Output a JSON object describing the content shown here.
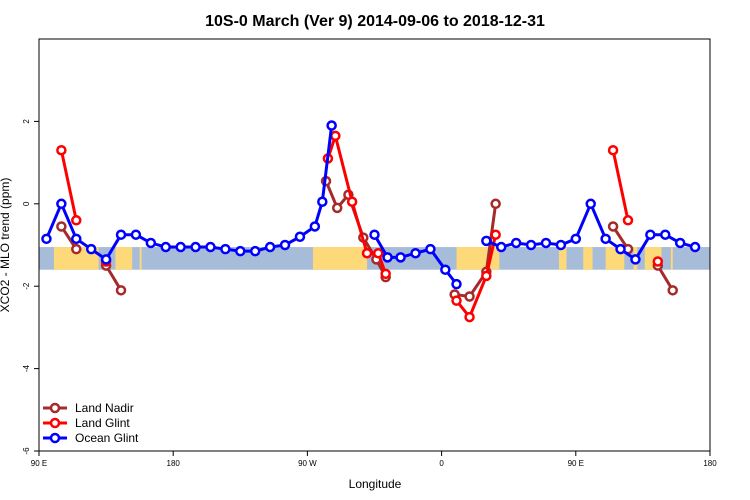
{
  "chart_data": {
    "type": "line",
    "title": "10S-0 March (Ver 9)   2014-09-06 to 2018-12-31",
    "xlabel": "Longitude",
    "ylabel": "XCO2 - MLO trend (ppm)",
    "xlim": [
      -90,
      270
    ],
    "ylim": [
      -6,
      4
    ],
    "xticks": [
      {
        "value": -90,
        "label": "90 E"
      },
      {
        "value": -18,
        "label": "180"
      },
      {
        "value": 54,
        "label": "90 W"
      },
      {
        "value": 126,
        "label": "0"
      },
      {
        "value": 198,
        "label": "90 E"
      },
      {
        "value": 270,
        "label": "180"
      }
    ],
    "yticks": [
      {
        "value": -6,
        "label": "-6"
      },
      {
        "value": -4,
        "label": "-4"
      },
      {
        "value": -2,
        "label": "-2"
      },
      {
        "value": 0,
        "label": "0"
      },
      {
        "value": 2,
        "label": "2"
      }
    ],
    "grid": false,
    "legend_position": "bottom-left",
    "latitude_band": {
      "y_range": [
        -1.6,
        -1.05
      ],
      "ocean_color": "#a7bcd8",
      "land_color": "#fdd97a",
      "land_segments": [
        [
          -82,
          -58
        ],
        [
          -49,
          -40
        ],
        [
          -36,
          -35
        ],
        [
          57,
          86
        ],
        [
          134,
          157
        ],
        [
          189,
          193
        ],
        [
          202,
          207
        ],
        [
          214,
          224
        ],
        [
          229,
          231
        ],
        [
          235,
          244
        ],
        [
          249,
          250
        ]
      ]
    },
    "series": [
      {
        "name": "Land Nadir",
        "color": "#a52a2a",
        "segments": [
          [
            [
              -78,
              -0.55
            ],
            [
              -70,
              -1.1
            ]
          ],
          [
            [
              -54,
              -1.5
            ],
            [
              -46,
              -2.1
            ]
          ],
          [
            [
              64,
              0.55
            ],
            [
              70,
              -0.1
            ],
            [
              76,
              0.22
            ],
            [
              84,
              -0.82
            ],
            [
              91,
              -1.35
            ],
            [
              96,
              -1.78
            ]
          ],
          [
            [
              133,
              -2.2
            ],
            [
              141,
              -2.25
            ],
            [
              150,
              -1.65
            ],
            [
              155,
              0
            ]
          ],
          [
            [
              218,
              -0.55
            ],
            [
              226,
              -1.1
            ]
          ],
          [
            [
              242,
              -1.5
            ],
            [
              250,
              -2.1
            ]
          ]
        ]
      },
      {
        "name": "Land Glint",
        "color": "#ff0000",
        "segments": [
          [
            [
              -78,
              1.3
            ],
            [
              -70,
              -0.4
            ]
          ],
          [
            [
              -54,
              -1.4
            ]
          ],
          [
            [
              65,
              1.1
            ],
            [
              69,
              1.65
            ],
            [
              78,
              0.05
            ],
            [
              86,
              -1.2
            ],
            [
              92,
              -1.2
            ],
            [
              96,
              -1.7
            ]
          ],
          [
            [
              134,
              -2.35
            ],
            [
              141,
              -2.75
            ],
            [
              150,
              -1.75
            ],
            [
              155,
              -0.75
            ]
          ],
          [
            [
              218,
              1.3
            ],
            [
              226,
              -0.4
            ]
          ],
          [
            [
              242,
              -1.4
            ]
          ]
        ]
      },
      {
        "name": "Ocean Glint",
        "color": "#0000ff",
        "segments": [
          [
            [
              -86,
              -0.85
            ],
            [
              -78,
              0
            ],
            [
              -70,
              -0.85
            ],
            [
              -62,
              -1.1
            ],
            [
              -54,
              -1.35
            ],
            [
              -46,
              -0.75
            ],
            [
              -38,
              -0.75
            ],
            [
              -30,
              -0.95
            ],
            [
              -22,
              -1.05
            ],
            [
              -14,
              -1.05
            ],
            [
              -6,
              -1.05
            ],
            [
              2,
              -1.05
            ],
            [
              10,
              -1.1
            ],
            [
              18,
              -1.15
            ],
            [
              26,
              -1.15
            ],
            [
              34,
              -1.05
            ],
            [
              42,
              -1.0
            ],
            [
              50,
              -0.8
            ],
            [
              58,
              -0.55
            ],
            [
              62,
              0.05
            ],
            [
              67,
              1.9
            ]
          ],
          [
            [
              90,
              -0.75
            ],
            [
              97,
              -1.3
            ],
            [
              104,
              -1.3
            ],
            [
              112,
              -1.2
            ],
            [
              120,
              -1.1
            ],
            [
              128,
              -1.6
            ],
            [
              134,
              -1.95
            ]
          ],
          [
            [
              150,
              -0.9
            ],
            [
              158,
              -1.05
            ],
            [
              166,
              -0.95
            ],
            [
              174,
              -1.0
            ],
            [
              182,
              -0.95
            ],
            [
              190,
              -1.0
            ],
            [
              198,
              -0.85
            ],
            [
              206,
              0
            ],
            [
              214,
              -0.85
            ],
            [
              222,
              -1.1
            ],
            [
              230,
              -1.35
            ],
            [
              238,
              -0.75
            ],
            [
              246,
              -0.75
            ],
            [
              254,
              -0.95
            ],
            [
              262,
              -1.05
            ]
          ]
        ]
      }
    ]
  }
}
